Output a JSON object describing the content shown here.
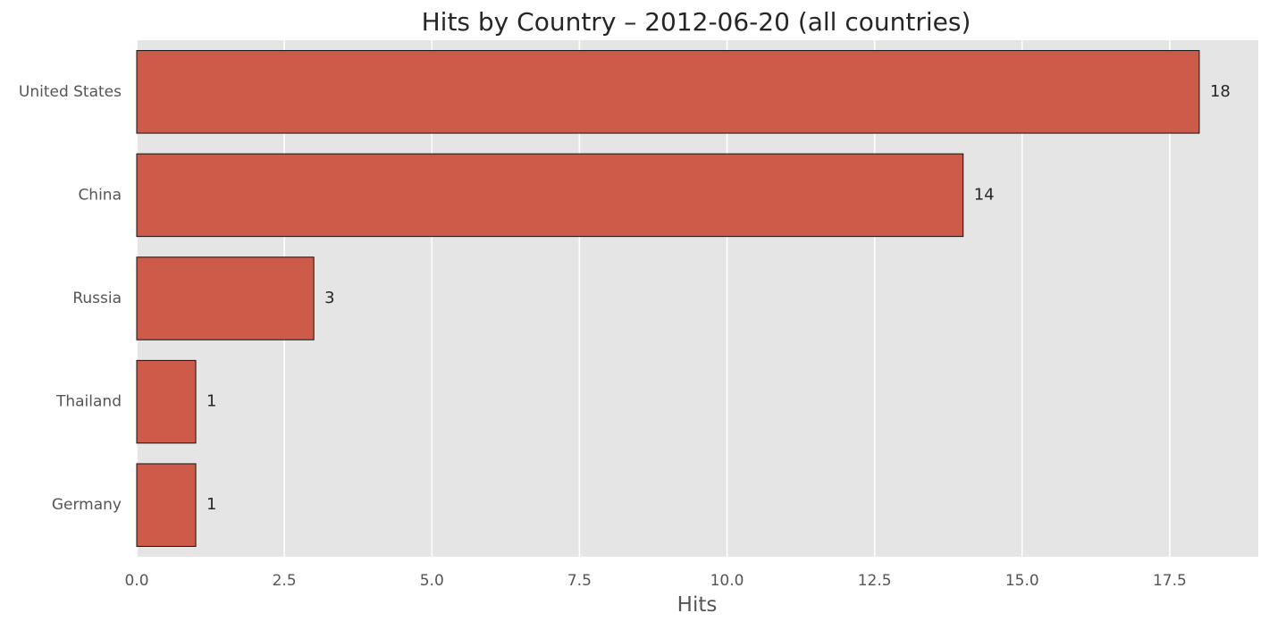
{
  "chart_data": {
    "type": "bar",
    "orientation": "horizontal",
    "title": "Hits by Country – 2012-06-20 (all countries)",
    "xlabel": "Hits",
    "ylabel": "",
    "categories": [
      "United States",
      "China",
      "Russia",
      "Thailand",
      "Germany"
    ],
    "values": [
      18,
      14,
      3,
      1,
      1
    ],
    "data_labels": [
      "18",
      "14",
      "3",
      "1",
      "1"
    ],
    "xlim": [
      0,
      19
    ],
    "xticks": [
      0.0,
      2.5,
      5.0,
      7.5,
      10.0,
      12.5,
      15.0,
      17.5
    ],
    "xtick_labels": [
      "0.0",
      "2.5",
      "5.0",
      "7.5",
      "10.0",
      "12.5",
      "15.0",
      "17.5"
    ],
    "grid": true,
    "legend": "none",
    "colors": {
      "bar": "#cd5b4a",
      "bar_edge": "#111111",
      "plot_background": "#e5e5e5",
      "grid": "#ffffff"
    }
  }
}
